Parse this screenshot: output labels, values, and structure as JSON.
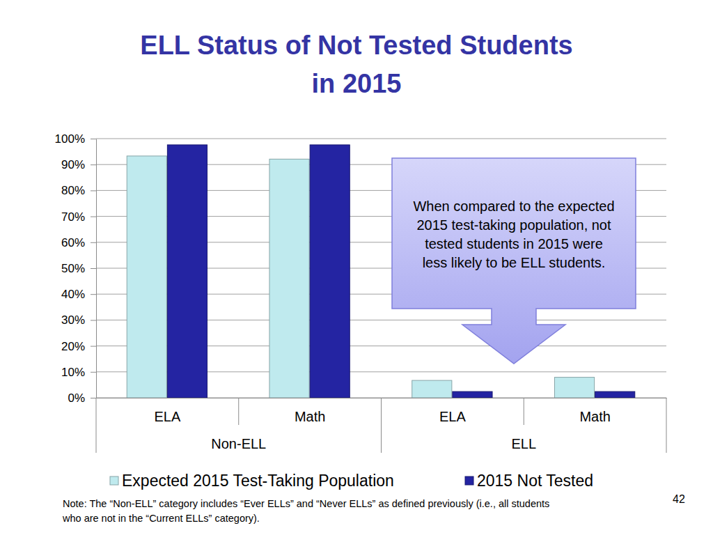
{
  "chart_data": {
    "type": "bar",
    "title": "ELL Status of Not Tested Students in 2015",
    "categories": [
      "ELA",
      "Math",
      "ELA",
      "Math"
    ],
    "category_groups": [
      "Non-ELL",
      "Non-ELL",
      "ELL",
      "ELL"
    ],
    "series": [
      {
        "name": "Expected 2015 Test-Taking Population",
        "color": "#bfeaee",
        "values": [
          93.3,
          92.1,
          6.7,
          7.9
        ]
      },
      {
        "name": "2015 Not Tested",
        "color": "#2424a2",
        "values": [
          97.6,
          97.6,
          2.4,
          2.4
        ]
      }
    ],
    "ylim": [
      0,
      100
    ],
    "yticks": [
      {
        "value": 0,
        "label": "0%"
      },
      {
        "value": 10,
        "label": "10%"
      },
      {
        "value": 20,
        "label": "20%"
      },
      {
        "value": 30,
        "label": "30%"
      },
      {
        "value": 40,
        "label": "40%"
      },
      {
        "value": 50,
        "label": "50%"
      },
      {
        "value": 60,
        "label": "60%"
      },
      {
        "value": 70,
        "label": "70%"
      },
      {
        "value": 80,
        "label": "80%"
      },
      {
        "value": 90,
        "label": "90%"
      },
      {
        "value": 100,
        "label": "100%"
      }
    ],
    "grid": true,
    "legend": "bottom",
    "annotation": [
      "When compared to the expected",
      "2015 test-taking population, not",
      "tested students in 2015 were",
      "less likely to be ELL students."
    ],
    "note": [
      "Note: The “Non-ELL” category includes “Ever ELLs” and “Never ELLs” as defined previously (i.e., all students",
      "who are not in the “Current ELLs” category)."
    ],
    "page_number": "42"
  }
}
